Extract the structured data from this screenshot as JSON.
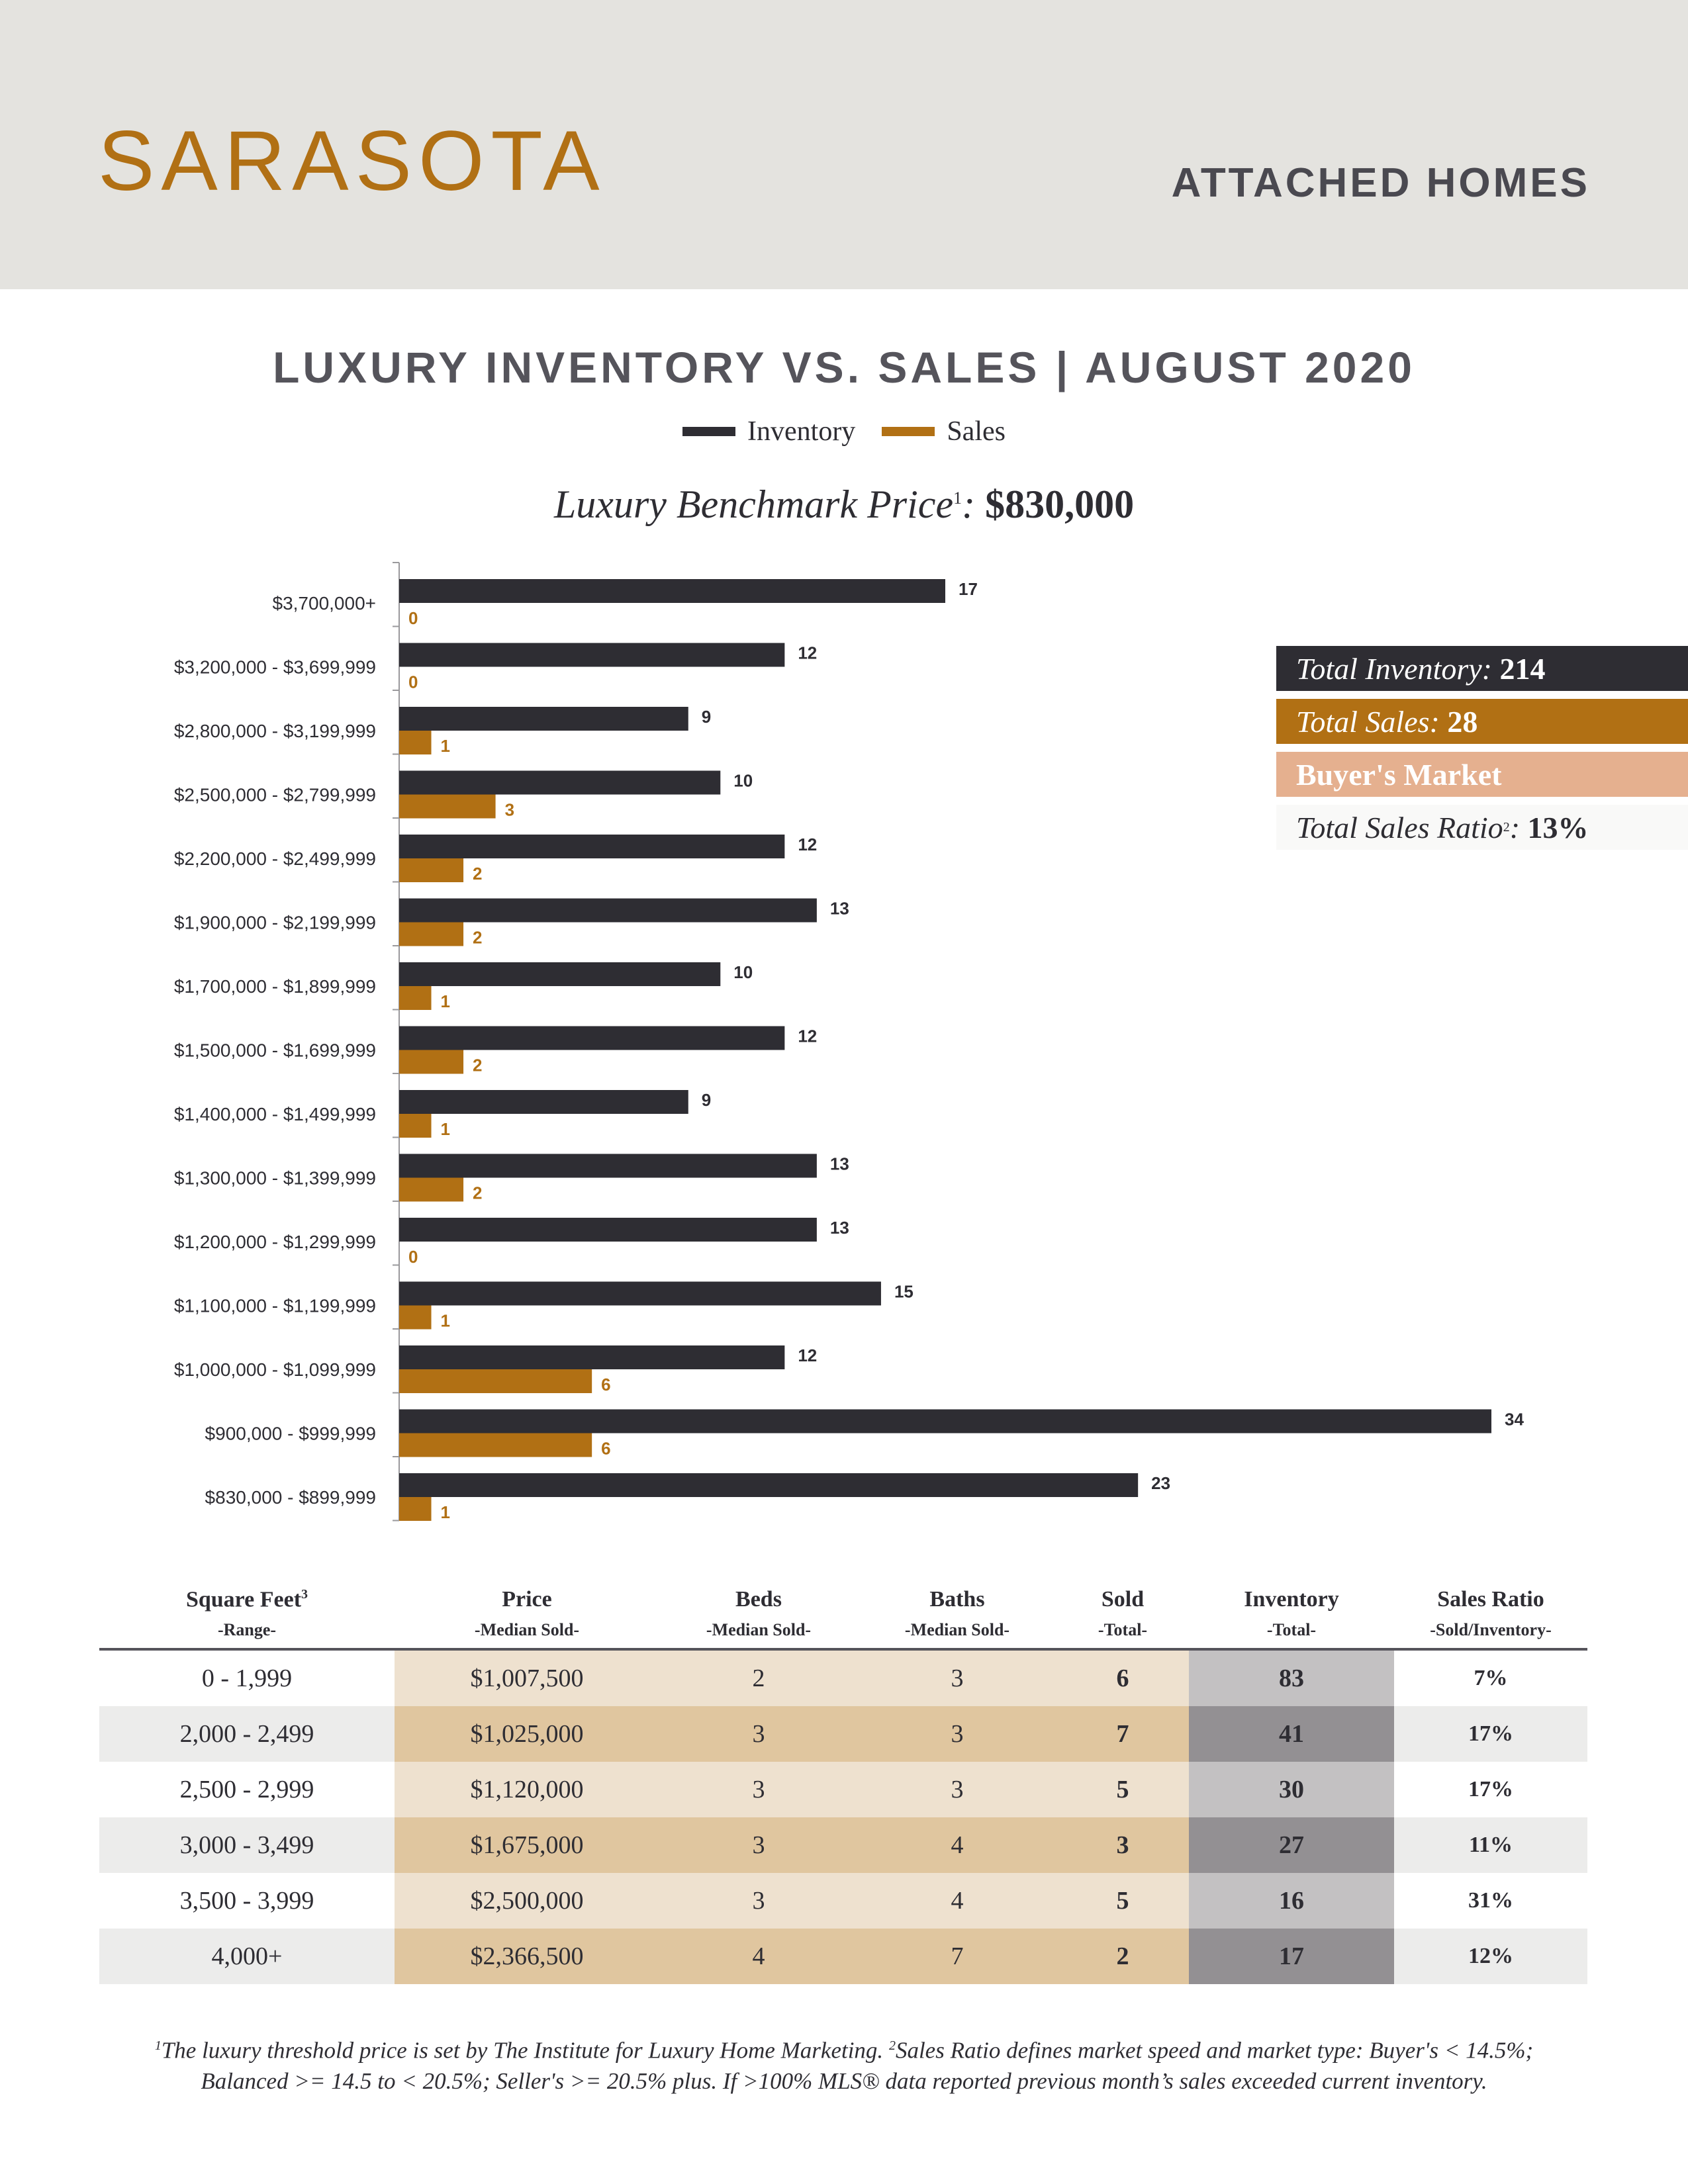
{
  "header": {
    "city": "SARASOTA",
    "property_type": "ATTACHED HOMES"
  },
  "benchmark": {
    "label": "Luxury Benchmark Price",
    "sup": "1",
    "value": "$830,000"
  },
  "summary": {
    "inventory_label": "Total Inventory:",
    "inventory_value": "214",
    "sales_label": "Total Sales:",
    "sales_value": "28",
    "market": "Buyer's Market",
    "ratio_label": "Total Sales Ratio",
    "ratio_sup": "2",
    "ratio_value": "13%"
  },
  "colors": {
    "inventory": "#2e2d33",
    "sales": "#b17014",
    "header_bg": "#e4e3df",
    "market_badge": "#e5b08f"
  },
  "chart_data": {
    "type": "bar",
    "orientation": "horizontal",
    "title": "LUXURY INVENTORY VS. SALES | AUGUST 2020",
    "categories": [
      "$3,700,000+",
      "$3,200,000 - $3,699,999",
      "$2,800,000 - $3,199,999",
      "$2,500,000 - $2,799,999",
      "$2,200,000 - $2,499,999",
      "$1,900,000 - $2,199,999",
      "$1,700,000 - $1,899,999",
      "$1,500,000 - $1,699,999",
      "$1,400,000 - $1,499,999",
      "$1,300,000 - $1,399,999",
      "$1,200,000 - $1,299,999",
      "$1,100,000 - $1,199,999",
      "$1,000,000 - $1,099,999",
      "$900,000 - $999,999",
      "$830,000 - $899,999"
    ],
    "series": [
      {
        "name": "Inventory",
        "values": [
          17,
          12,
          9,
          10,
          12,
          13,
          10,
          12,
          9,
          13,
          13,
          15,
          12,
          34,
          23
        ]
      },
      {
        "name": "Sales",
        "values": [
          0,
          0,
          1,
          3,
          2,
          2,
          1,
          2,
          1,
          2,
          0,
          1,
          6,
          6,
          1
        ]
      }
    ],
    "xlim": [
      0,
      34
    ],
    "legend": "top-center",
    "grid": false
  },
  "table": {
    "headers": [
      {
        "title": "Square Feet",
        "sup": "3",
        "sub": "-Range-"
      },
      {
        "title": "Price",
        "sub": "-Median Sold-"
      },
      {
        "title": "Beds",
        "sub": "-Median Sold-"
      },
      {
        "title": "Baths",
        "sub": "-Median Sold-"
      },
      {
        "title": "Sold",
        "sub": "-Total-"
      },
      {
        "title": "Inventory",
        "sub": "-Total-"
      },
      {
        "title": "Sales Ratio",
        "sub": "-Sold/Inventory-"
      }
    ],
    "rows": [
      [
        "0 - 1,999",
        "$1,007,500",
        "2",
        "3",
        "6",
        "83",
        "7%"
      ],
      [
        "2,000 - 2,499",
        "$1,025,000",
        "3",
        "3",
        "7",
        "41",
        "17%"
      ],
      [
        "2,500 - 2,999",
        "$1,120,000",
        "3",
        "3",
        "5",
        "30",
        "17%"
      ],
      [
        "3,000 - 3,499",
        "$1,675,000",
        "3",
        "4",
        "3",
        "27",
        "11%"
      ],
      [
        "3,500 - 3,999",
        "$2,500,000",
        "3",
        "4",
        "5",
        "16",
        "31%"
      ],
      [
        "4,000+",
        "$2,366,500",
        "4",
        "7",
        "2",
        "17",
        "12%"
      ]
    ]
  },
  "footnote": {
    "sup1": "1",
    "text1": "The luxury threshold price is set by The Institute for Luxury Home Marketing.",
    "sup2": "2",
    "text2": "Sales Ratio defines market speed and market type: Buyer's < 14.5%;",
    "line2": "Balanced >= 14.5 to < 20.5%; Seller's >= 20.5% plus. If >100% MLS® data reported previous month’s sales exceeded current inventory."
  }
}
